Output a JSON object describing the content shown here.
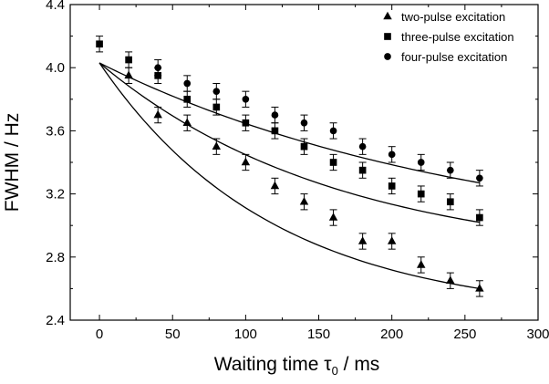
{
  "chart_data": {
    "type": "scatter",
    "xlabel": {
      "main": "Waiting time ",
      "symbol": "τ",
      "subscript": "0",
      "unit": " / ms"
    },
    "ylabel": "FWHM / Hz",
    "xlim": [
      -20,
      300
    ],
    "ylim": [
      2.4,
      4.4
    ],
    "x_ticks": [
      0,
      50,
      100,
      150,
      200,
      250,
      300
    ],
    "x_tick_labels": [
      "0",
      "50",
      "100",
      "150",
      "200",
      "250",
      "300"
    ],
    "y_ticks": [
      2.4,
      2.8,
      3.2,
      3.6,
      4.0,
      4.4
    ],
    "y_tick_labels": [
      "2.4",
      "2.8",
      "3.2",
      "3.6",
      "4.0",
      "4.4"
    ],
    "grid": false,
    "legend_position": "top-right",
    "series": [
      {
        "name": "two-pulse excitation",
        "marker": "triangle",
        "x": [
          20,
          40,
          60,
          80,
          100,
          120,
          140,
          160,
          180,
          200,
          220,
          240,
          260
        ],
        "y": [
          3.95,
          3.7,
          3.65,
          3.5,
          3.4,
          3.25,
          3.15,
          3.05,
          2.9,
          2.9,
          2.75,
          2.65,
          2.6
        ],
        "err": [
          0.05,
          0.05,
          0.05,
          0.05,
          0.05,
          0.05,
          0.05,
          0.05,
          0.05,
          0.05,
          0.05,
          0.05,
          0.05
        ],
        "fit_end": 2.6
      },
      {
        "name": "three-pulse excitation",
        "marker": "square",
        "x": [
          0,
          20,
          40,
          60,
          80,
          100,
          120,
          140,
          160,
          180,
          200,
          220,
          240,
          260
        ],
        "y": [
          4.15,
          4.05,
          3.95,
          3.8,
          3.75,
          3.65,
          3.6,
          3.5,
          3.4,
          3.35,
          3.25,
          3.2,
          3.15,
          3.05
        ],
        "err": [
          0.05,
          0.05,
          0.05,
          0.05,
          0.05,
          0.05,
          0.05,
          0.05,
          0.05,
          0.05,
          0.05,
          0.05,
          0.05,
          0.05
        ],
        "fit_end": 3.02
      },
      {
        "name": "four-pulse excitation",
        "marker": "circle",
        "x": [
          40,
          60,
          80,
          100,
          120,
          140,
          160,
          180,
          200,
          220,
          240,
          260
        ],
        "y": [
          4.0,
          3.9,
          3.85,
          3.8,
          3.7,
          3.65,
          3.6,
          3.5,
          3.45,
          3.4,
          3.35,
          3.3
        ],
        "err": [
          0.05,
          0.05,
          0.05,
          0.05,
          0.05,
          0.05,
          0.05,
          0.05,
          0.05,
          0.05,
          0.05,
          0.05
        ],
        "fit_end": 3.27
      }
    ],
    "fit_start": {
      "x": 0,
      "y": 4.03
    }
  }
}
